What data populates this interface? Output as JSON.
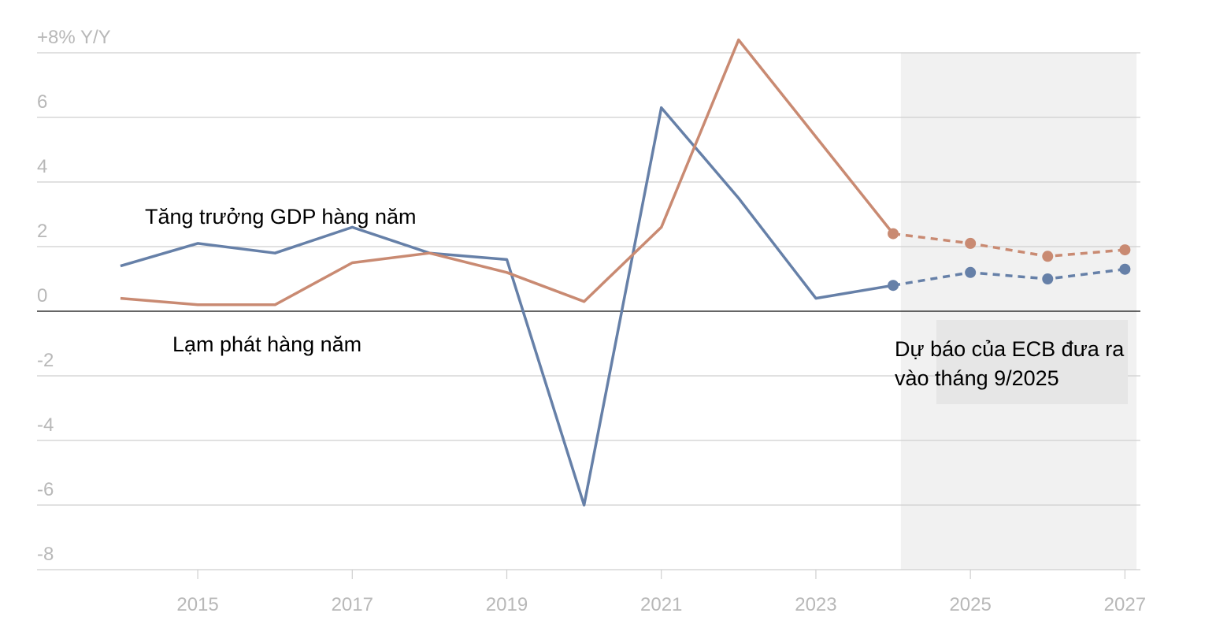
{
  "chart_data": {
    "type": "line",
    "x": [
      2014,
      2015,
      2016,
      2017,
      2018,
      2019,
      2020,
      2021,
      2022,
      2023,
      2024,
      2025,
      2026,
      2027
    ],
    "series": [
      {
        "name": "Tăng trưởng GDP hàng năm",
        "color": "#6680a8",
        "values": [
          1.4,
          2.1,
          1.8,
          2.6,
          1.8,
          1.6,
          -6.0,
          6.3,
          3.5,
          0.4,
          0.8,
          1.2,
          1.0,
          1.3
        ]
      },
      {
        "name": "Lạm phát hàng năm",
        "color": "#c98a72",
        "values": [
          0.4,
          0.2,
          0.2,
          1.5,
          1.8,
          1.2,
          0.3,
          2.6,
          8.4,
          5.4,
          2.4,
          2.1,
          1.7,
          1.9
        ]
      }
    ],
    "forecast_from": 2024,
    "forecast_region": [
      2024.1,
      2027.15
    ],
    "annotation": [
      "Dự báo của ECB đưa ra",
      "vào tháng 9/2025"
    ],
    "xlim": [
      2012.92,
      2027.2
    ],
    "xticks": [
      2015,
      2017,
      2019,
      2021,
      2023,
      2025,
      2027
    ],
    "ylim": [
      -8,
      8
    ],
    "yticks": [
      {
        "value": 8,
        "label": "+8% Y/Y"
      },
      6,
      4,
      2,
      0,
      -2,
      -4,
      -6,
      -8
    ],
    "grid": true
  }
}
